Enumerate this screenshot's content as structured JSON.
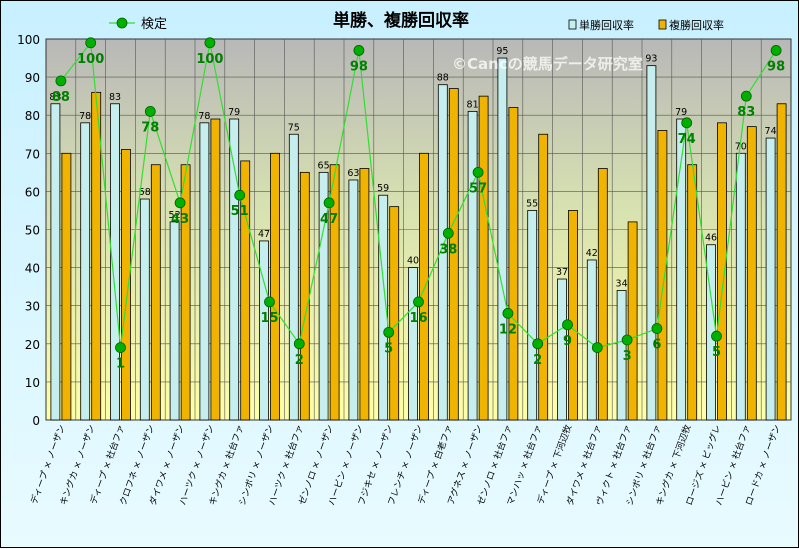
{
  "chart_data": {
    "type": "bar",
    "title": "単勝、複勝回収率",
    "watermark": "©Cancの競馬データ研究室",
    "ylim": [
      0,
      100
    ],
    "yticks": [
      0,
      10,
      20,
      30,
      40,
      50,
      60,
      70,
      80,
      90,
      100
    ],
    "grid": true,
    "legend_placement": "top",
    "categories": [
      "ディープ × ノーザン",
      "キングカ × ノーザン",
      "ディープ × 社台ファ",
      "クロフネ × ノーザン",
      "ダイワメ × ノーザン",
      "ハーツク × ノーザン",
      "キングカ × 社台ファ",
      "シンボリ × ノーザン",
      "ハーツク × 社台ファ",
      "ゼンノロ × ノーザン",
      "ハービン × ノーザン",
      "フジキセ × ノーザン",
      "フレンチ × ノーザン",
      "ディープ × 白老ファ",
      "アグネス × ノーザン",
      "ゼンノロ × 社台ファ",
      "マンハッ × 社台ファ",
      "ディープ × 下河辺牧",
      "ダイワメ × 社台ファ",
      "ヴィクト × 社台ファ",
      "シンボリ × 社台ファ",
      "キングカ × 下河辺牧",
      "ロージズ × ビッグレ",
      "ハービン × 社台ファ",
      "ロードカ × ノーザン"
    ],
    "series": [
      {
        "name": "単勝回収率",
        "kind": "bar",
        "color": "#c6eeee",
        "values": [
          83,
          78,
          83,
          58,
          52,
          78,
          79,
          47,
          75,
          65,
          63,
          59,
          40,
          88,
          81,
          95,
          55,
          37,
          42,
          34,
          93,
          79,
          46,
          70,
          74
        ]
      },
      {
        "name": "複勝回収率",
        "kind": "bar",
        "color": "#f0b400",
        "values": [
          70,
          86,
          71,
          67,
          67,
          79,
          68,
          70,
          65,
          67,
          66,
          56,
          70,
          87,
          85,
          82,
          75,
          55,
          66,
          52,
          76,
          67,
          78,
          77,
          83
        ]
      },
      {
        "name": "検定",
        "kind": "line",
        "color": "#00a000",
        "values": [
          89,
          99,
          19,
          81,
          57,
          99,
          59,
          31,
          20,
          57,
          97,
          23,
          31,
          49,
          65,
          28,
          20,
          25,
          19,
          21,
          24,
          78,
          22,
          85,
          97
        ],
        "labels": [
          "88",
          "100",
          "1",
          "78",
          "43",
          "100",
          "51",
          "15",
          "2",
          "47",
          "98",
          "5",
          "16",
          "38",
          "57",
          "12",
          "2",
          "9",
          "",
          "3",
          "6",
          "74",
          "5",
          "83",
          "98"
        ]
      }
    ]
  }
}
